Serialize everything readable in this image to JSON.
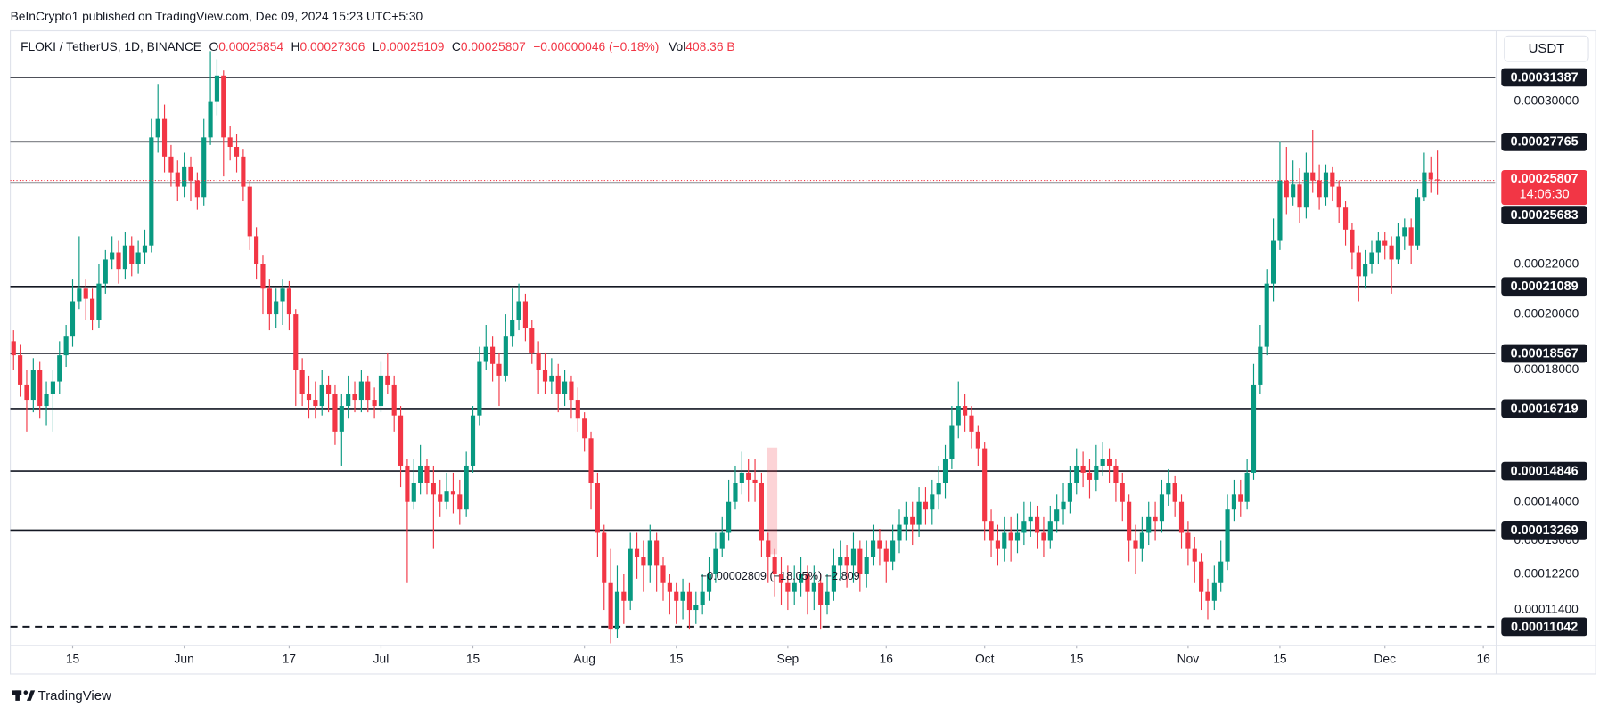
{
  "chart_data": {
    "type": "candlestick",
    "published": "BeInCrypto1 published on TradingView.com, Dec 09, 2024 15:23 UTC+5:30",
    "legend_header": {
      "symbol": "FLOKI / TetherUS, 1D, BINANCE",
      "o": "O",
      "h": "H",
      "l": "L",
      "c": "C",
      "change": "−0.00000046 (−0.18%)",
      "vol_label": "Vol",
      "volume": "408.36 B"
    },
    "currency": "USDT",
    "countdown": "14:06:30",
    "measure": "−0.00002809 (−18.05%) −2,809",
    "brand": "TradingView",
    "up_color": "#089981",
    "down_color": "#f23645",
    "log_y": true,
    "grid": false,
    "xlim": [
      -0.5,
      225.8
    ],
    "ylim": [
      0.000107,
      0.000343
    ],
    "xticks": [
      {
        "value": 9,
        "label": "15"
      },
      {
        "value": 26,
        "label": "Jun"
      },
      {
        "value": 42,
        "label": "17"
      },
      {
        "value": 56,
        "label": "Jul"
      },
      {
        "value": 70,
        "label": "15"
      },
      {
        "value": 87,
        "label": "Aug"
      },
      {
        "value": 101,
        "label": "15"
      },
      {
        "value": 118,
        "label": "Sep"
      },
      {
        "value": 133,
        "label": "16"
      },
      {
        "value": 148,
        "label": "Oct"
      },
      {
        "value": 162,
        "label": "15"
      },
      {
        "value": 179,
        "label": "Nov"
      },
      {
        "value": 193,
        "label": "15"
      },
      {
        "value": 209,
        "label": "Dec"
      },
      {
        "value": 224,
        "label": "16"
      }
    ],
    "yticks": [
      {
        "value": 0.0003,
        "label": "0.00030000"
      },
      {
        "value": 0.00022,
        "label": "0.00022000"
      },
      {
        "value": 0.0002,
        "label": "0.00020000"
      },
      {
        "value": 0.00018,
        "label": "0.00018000"
      },
      {
        "value": 0.00014,
        "label": "0.00014000"
      },
      {
        "value": 0.00013,
        "label": "0.00013000"
      },
      {
        "value": 0.000122,
        "label": "0.00012200"
      },
      {
        "value": 0.000114,
        "label": "0.00011400"
      }
    ],
    "levels": [
      0.00031387,
      0.00027765,
      0.00025683,
      0.00021089,
      0.00018567,
      0.00016719,
      0.00014846,
      0.00013269
    ],
    "dashed_levels": [
      0.00011042
    ],
    "open": [
      0.00019,
      0.000185,
      0.000175,
      0.00017,
      0.00018,
      0.000168,
      0.000172,
      0.000176,
      0.000185,
      0.000192,
      0.000205,
      0.00021,
      0.000206,
      0.000198,
      0.000212,
      0.000222,
      0.000225,
      0.000218,
      0.000228,
      0.00022,
      0.000225,
      0.000228,
      0.00028,
      0.00029,
      0.00027,
      0.000262,
      0.000255,
      0.000265,
      0.000258,
      0.00025,
      0.00028,
      0.0003,
      0.000315,
      0.00028,
      0.000275,
      0.00027,
      0.000255,
      0.000232,
      0.00022,
      0.00021,
      0.0002,
      0.000205,
      0.00021,
      0.0002,
      0.00018,
      0.000172,
      0.00017,
      0.000168,
      0.000175,
      0.000172,
      0.00016,
      0.000168,
      0.000172,
      0.00017,
      0.000176,
      0.00017,
      0.000168,
      0.000178,
      0.000175,
      0.000165,
      0.00015,
      0.00014,
      0.000145,
      0.00015,
      0.000145,
      0.000142,
      0.00014,
      0.000143,
      0.000142,
      0.000138,
      0.00015,
      0.000165,
      0.000183,
      0.000188,
      0.000182,
      0.000178,
      0.000192,
      0.000198,
      0.000205,
      0.000195,
      0.000186,
      0.00018,
      0.000176,
      0.000178,
      0.000172,
      0.000176,
      0.00017,
      0.000164,
      0.000158,
      0.000145,
      0.000132,
      0.00012,
      0.00011,
      0.000118,
      0.000116,
      0.000128,
      0.000126,
      0.000124,
      0.00013,
      0.000124,
      0.00012,
      0.000118,
      0.000116,
      0.000118,
      0.000114,
      0.000115,
      0.000118,
      0.000122,
      0.000128,
      0.000132,
      0.00014,
      0.000145,
      0.000148,
      0.000146,
      0.000145,
      0.00013,
      0.000126,
      0.000122,
      0.00012,
      0.000118,
      0.00012,
      0.000122,
      0.000118,
      0.00012,
      0.000115,
      0.000118,
      0.000124,
      0.000126,
      0.000124,
      0.000128,
      0.000122,
      0.000126,
      0.00013,
      0.000128,
      0.000125,
      0.00013,
      0.000134,
      0.000136,
      0.000134,
      0.00014,
      0.000138,
      0.000142,
      0.000145,
      0.000152,
      0.000162,
      0.000168,
      0.000165,
      0.00016,
      0.000155,
      0.000135,
      0.00013,
      0.000128,
      0.000132,
      0.00013,
      0.000132,
      0.000135,
      0.000136,
      0.000132,
      0.00013,
      0.000135,
      0.000138,
      0.00014,
      0.000145,
      0.00015,
      0.000148,
      0.000146,
      0.00015,
      0.000152,
      0.00015,
      0.000145,
      0.00014,
      0.00013,
      0.000128,
      0.000132,
      0.000136,
      0.000135,
      0.000142,
      0.000145,
      0.00014,
      0.000132,
      0.000128,
      0.000125,
      0.000118,
      0.000116,
      0.00012,
      0.000125,
      0.000138,
      0.000142,
      0.00014,
      0.000148,
      0.000175,
      0.000188,
      0.000212,
      0.00023,
      0.000258,
      0.00025,
      0.000256,
      0.000245,
      0.000262,
      0.000258,
      0.00025,
      0.000262,
      0.000255,
      0.000245,
      0.000235,
      0.000225,
      0.000215,
      0.00022,
      0.000225,
      0.00023,
      0.000228,
      0.000222,
      0.000232,
      0.000236,
      0.000228,
      0.00025,
      0.000262,
      0.00025854
    ],
    "high": [
      0.000194,
      0.000189,
      0.00018,
      0.000184,
      0.000183,
      0.000176,
      0.00018,
      0.00019,
      0.000196,
      0.000214,
      0.000232,
      0.000214,
      0.00021,
      0.00022,
      0.000226,
      0.000232,
      0.00023,
      0.000234,
      0.000232,
      0.00023,
      0.000235,
      0.00029,
      0.00031,
      0.000298,
      0.000276,
      0.000268,
      0.000272,
      0.00027,
      0.000262,
      0.00029,
      0.00033,
      0.000325,
      0.000318,
      0.000286,
      0.000282,
      0.000274,
      0.000258,
      0.000236,
      0.000224,
      0.000214,
      0.00021,
      0.000214,
      0.000213,
      0.000202,
      0.000184,
      0.000178,
      0.000176,
      0.00018,
      0.000178,
      0.000175,
      0.000172,
      0.000178,
      0.000176,
      0.00018,
      0.000178,
      0.000174,
      0.000183,
      0.000186,
      0.000178,
      0.000168,
      0.000152,
      0.000152,
      0.000156,
      0.000152,
      0.00015,
      0.000146,
      0.000148,
      0.000148,
      0.000146,
      0.000154,
      0.000168,
      0.000188,
      0.000196,
      0.000192,
      0.000186,
      0.0002,
      0.00021,
      0.000212,
      0.000208,
      0.000198,
      0.00019,
      0.000186,
      0.000184,
      0.000182,
      0.00018,
      0.000178,
      0.000174,
      0.000166,
      0.00016,
      0.000148,
      0.000134,
      0.000128,
      0.000124,
      0.000122,
      0.000132,
      0.000132,
      0.00013,
      0.000134,
      0.000132,
      0.000126,
      0.000122,
      0.00012,
      0.000121,
      0.00012,
      0.000118,
      0.000122,
      0.000126,
      0.000132,
      0.000136,
      0.000146,
      0.00015,
      0.000154,
      0.000152,
      0.000152,
      0.000148,
      0.000132,
      0.000128,
      0.000126,
      0.000124,
      0.000124,
      0.000126,
      0.000124,
      0.000124,
      0.000122,
      0.000122,
      0.000128,
      0.00013,
      0.000129,
      0.000132,
      0.00013,
      0.00013,
      0.000134,
      0.000133,
      0.00013,
      0.000134,
      0.000138,
      0.00014,
      0.00014,
      0.000144,
      0.000144,
      0.000146,
      0.00015,
      0.000156,
      0.000168,
      0.000176,
      0.000172,
      0.000168,
      0.000162,
      0.000157,
      0.000138,
      0.000134,
      0.000136,
      0.000136,
      0.000137,
      0.00014,
      0.00014,
      0.000139,
      0.000136,
      0.000139,
      0.000142,
      0.000145,
      0.00015,
      0.000155,
      0.000154,
      0.000152,
      0.000156,
      0.000157,
      0.000155,
      0.000152,
      0.000148,
      0.000142,
      0.000134,
      0.000136,
      0.00014,
      0.00014,
      0.000146,
      0.000149,
      0.000147,
      0.000142,
      0.000135,
      0.000131,
      0.000127,
      0.000121,
      0.000124,
      0.00013,
      0.000142,
      0.000146,
      0.000146,
      0.000152,
      0.000182,
      0.000196,
      0.000218,
      0.00024,
      0.000278,
      0.000275,
      0.000268,
      0.000264,
      0.000272,
      0.000284,
      0.000266,
      0.000266,
      0.000265,
      0.000258,
      0.000248,
      0.000238,
      0.000228,
      0.000226,
      0.00023,
      0.000234,
      0.000234,
      0.000232,
      0.000238,
      0.00024,
      0.00024,
      0.000254,
      0.000272,
      0.00027,
      0.00027306
    ],
    "low": [
      0.00018,
      0.000171,
      0.00016,
      0.000166,
      0.000164,
      0.000162,
      0.00016,
      0.000172,
      0.000181,
      0.000188,
      0.000202,
      0.000198,
      0.000194,
      0.000195,
      0.000208,
      0.000218,
      0.000212,
      0.000214,
      0.000215,
      0.000216,
      0.00022,
      0.000225,
      0.000272,
      0.000262,
      0.000255,
      0.000248,
      0.00025,
      0.000248,
      0.000244,
      0.000246,
      0.000276,
      0.000292,
      0.00026,
      0.000268,
      0.000262,
      0.000248,
      0.000226,
      0.000214,
      0.0002,
      0.000194,
      0.000195,
      0.000196,
      0.000194,
      0.000168,
      0.000168,
      0.000164,
      0.000164,
      0.000165,
      0.000166,
      0.000156,
      0.00015,
      0.000164,
      0.000166,
      0.000166,
      0.000166,
      0.000164,
      0.000166,
      0.000172,
      0.00016,
      0.000144,
      0.00012,
      0.000138,
      0.000142,
      0.000142,
      0.000128,
      0.000136,
      0.000138,
      0.000137,
      0.000134,
      0.000136,
      0.000148,
      0.000162,
      0.00018,
      0.000176,
      0.000168,
      0.000176,
      0.000188,
      0.000194,
      0.00019,
      0.000182,
      0.000172,
      0.000172,
      0.000172,
      0.000166,
      0.000168,
      0.000164,
      0.00016,
      0.000154,
      0.000138,
      0.000126,
      0.000114,
      0.000107,
      0.000108,
      0.000111,
      0.000114,
      0.000121,
      0.000118,
      0.00012,
      0.000118,
      0.000116,
      0.000113,
      0.000111,
      0.000112,
      0.00011,
      0.000111,
      0.000113,
      0.000116,
      0.00012,
      0.000126,
      0.00013,
      0.000138,
      0.000142,
      0.00014,
      0.00014,
      0.000126,
      0.00012,
      0.000117,
      0.000115,
      0.000114,
      0.000115,
      0.000117,
      0.000113,
      0.000114,
      0.00011,
      0.000113,
      0.000116,
      0.000121,
      0.000119,
      0.00012,
      0.000118,
      0.000119,
      0.000124,
      0.000124,
      0.00012,
      0.000123,
      0.000127,
      0.00013,
      0.000129,
      0.000131,
      0.000134,
      0.000134,
      0.000138,
      0.000141,
      0.000149,
      0.000158,
      0.00016,
      0.000155,
      0.00015,
      0.00013,
      0.000126,
      0.000124,
      0.000125,
      0.000125,
      0.000127,
      0.000129,
      0.000131,
      0.000128,
      0.000126,
      0.000128,
      0.000132,
      0.000134,
      0.000137,
      0.000142,
      0.000144,
      0.000141,
      0.000143,
      0.000147,
      0.000145,
      0.00014,
      0.000135,
      0.000125,
      0.000122,
      0.000125,
      0.000129,
      0.00013,
      0.000132,
      0.000139,
      0.000136,
      0.000128,
      0.000124,
      0.00012,
      0.000114,
      0.000112,
      0.000114,
      0.000118,
      0.000123,
      0.000135,
      0.000136,
      0.000138,
      0.000146,
      0.000172,
      0.000185,
      0.000205,
      0.000226,
      0.000242,
      0.000246,
      0.000238,
      0.00024,
      0.000252,
      0.000244,
      0.000246,
      0.000248,
      0.000238,
      0.000228,
      0.000218,
      0.000205,
      0.00021,
      0.000216,
      0.00022,
      0.000222,
      0.000208,
      0.00022,
      0.000226,
      0.00022,
      0.000226,
      0.000248,
      0.000252,
      0.00025109
    ],
    "close": [
      0.000185,
      0.000175,
      0.00017,
      0.00018,
      0.000168,
      0.000172,
      0.000176,
      0.000185,
      0.000192,
      0.000205,
      0.00021,
      0.000206,
      0.000198,
      0.000212,
      0.000222,
      0.000225,
      0.000218,
      0.000228,
      0.00022,
      0.000225,
      0.000228,
      0.00028,
      0.00029,
      0.00027,
      0.000262,
      0.000255,
      0.000265,
      0.000258,
      0.00025,
      0.00028,
      0.0003,
      0.000315,
      0.00028,
      0.000275,
      0.00027,
      0.000255,
      0.000232,
      0.00022,
      0.00021,
      0.0002,
      0.000205,
      0.00021,
      0.0002,
      0.00018,
      0.000172,
      0.00017,
      0.000168,
      0.000175,
      0.000172,
      0.00016,
      0.000168,
      0.000172,
      0.00017,
      0.000176,
      0.00017,
      0.000168,
      0.000178,
      0.000175,
      0.000165,
      0.00015,
      0.00014,
      0.000145,
      0.00015,
      0.000145,
      0.000142,
      0.00014,
      0.000143,
      0.000142,
      0.000138,
      0.00015,
      0.000165,
      0.000183,
      0.000188,
      0.000182,
      0.000178,
      0.000192,
      0.000198,
      0.000205,
      0.000195,
      0.000186,
      0.00018,
      0.000176,
      0.000178,
      0.000172,
      0.000176,
      0.00017,
      0.000164,
      0.000158,
      0.000145,
      0.000132,
      0.00012,
      0.00011,
      0.000118,
      0.000116,
      0.000128,
      0.000126,
      0.000124,
      0.00013,
      0.000124,
      0.00012,
      0.000118,
      0.000116,
      0.000118,
      0.000114,
      0.000115,
      0.000118,
      0.000122,
      0.000128,
      0.000132,
      0.00014,
      0.000145,
      0.000148,
      0.000146,
      0.000145,
      0.00013,
      0.000126,
      0.000122,
      0.00012,
      0.000118,
      0.00012,
      0.000122,
      0.000118,
      0.00012,
      0.000115,
      0.000118,
      0.000124,
      0.000126,
      0.000124,
      0.000128,
      0.000122,
      0.000126,
      0.00013,
      0.000128,
      0.000125,
      0.00013,
      0.000134,
      0.000136,
      0.000134,
      0.00014,
      0.000138,
      0.000142,
      0.000145,
      0.000152,
      0.000162,
      0.000168,
      0.000165,
      0.00016,
      0.000155,
      0.000135,
      0.00013,
      0.000128,
      0.000132,
      0.00013,
      0.000132,
      0.000135,
      0.000136,
      0.000132,
      0.00013,
      0.000135,
      0.000138,
      0.00014,
      0.000145,
      0.00015,
      0.000148,
      0.000146,
      0.00015,
      0.000152,
      0.00015,
      0.000145,
      0.00014,
      0.00013,
      0.000128,
      0.000132,
      0.000136,
      0.000135,
      0.000142,
      0.000145,
      0.00014,
      0.000132,
      0.000128,
      0.000125,
      0.000118,
      0.000116,
      0.00012,
      0.000125,
      0.000138,
      0.000142,
      0.00014,
      0.000148,
      0.000175,
      0.000188,
      0.000212,
      0.00023,
      0.000258,
      0.00025,
      0.000256,
      0.000245,
      0.000262,
      0.000258,
      0.00025,
      0.000262,
      0.000255,
      0.000245,
      0.000235,
      0.000225,
      0.000215,
      0.00022,
      0.000225,
      0.00023,
      0.000228,
      0.000222,
      0.000232,
      0.000236,
      0.000228,
      0.00025,
      0.000262,
      0.00025854,
      0.00025807
    ]
  }
}
